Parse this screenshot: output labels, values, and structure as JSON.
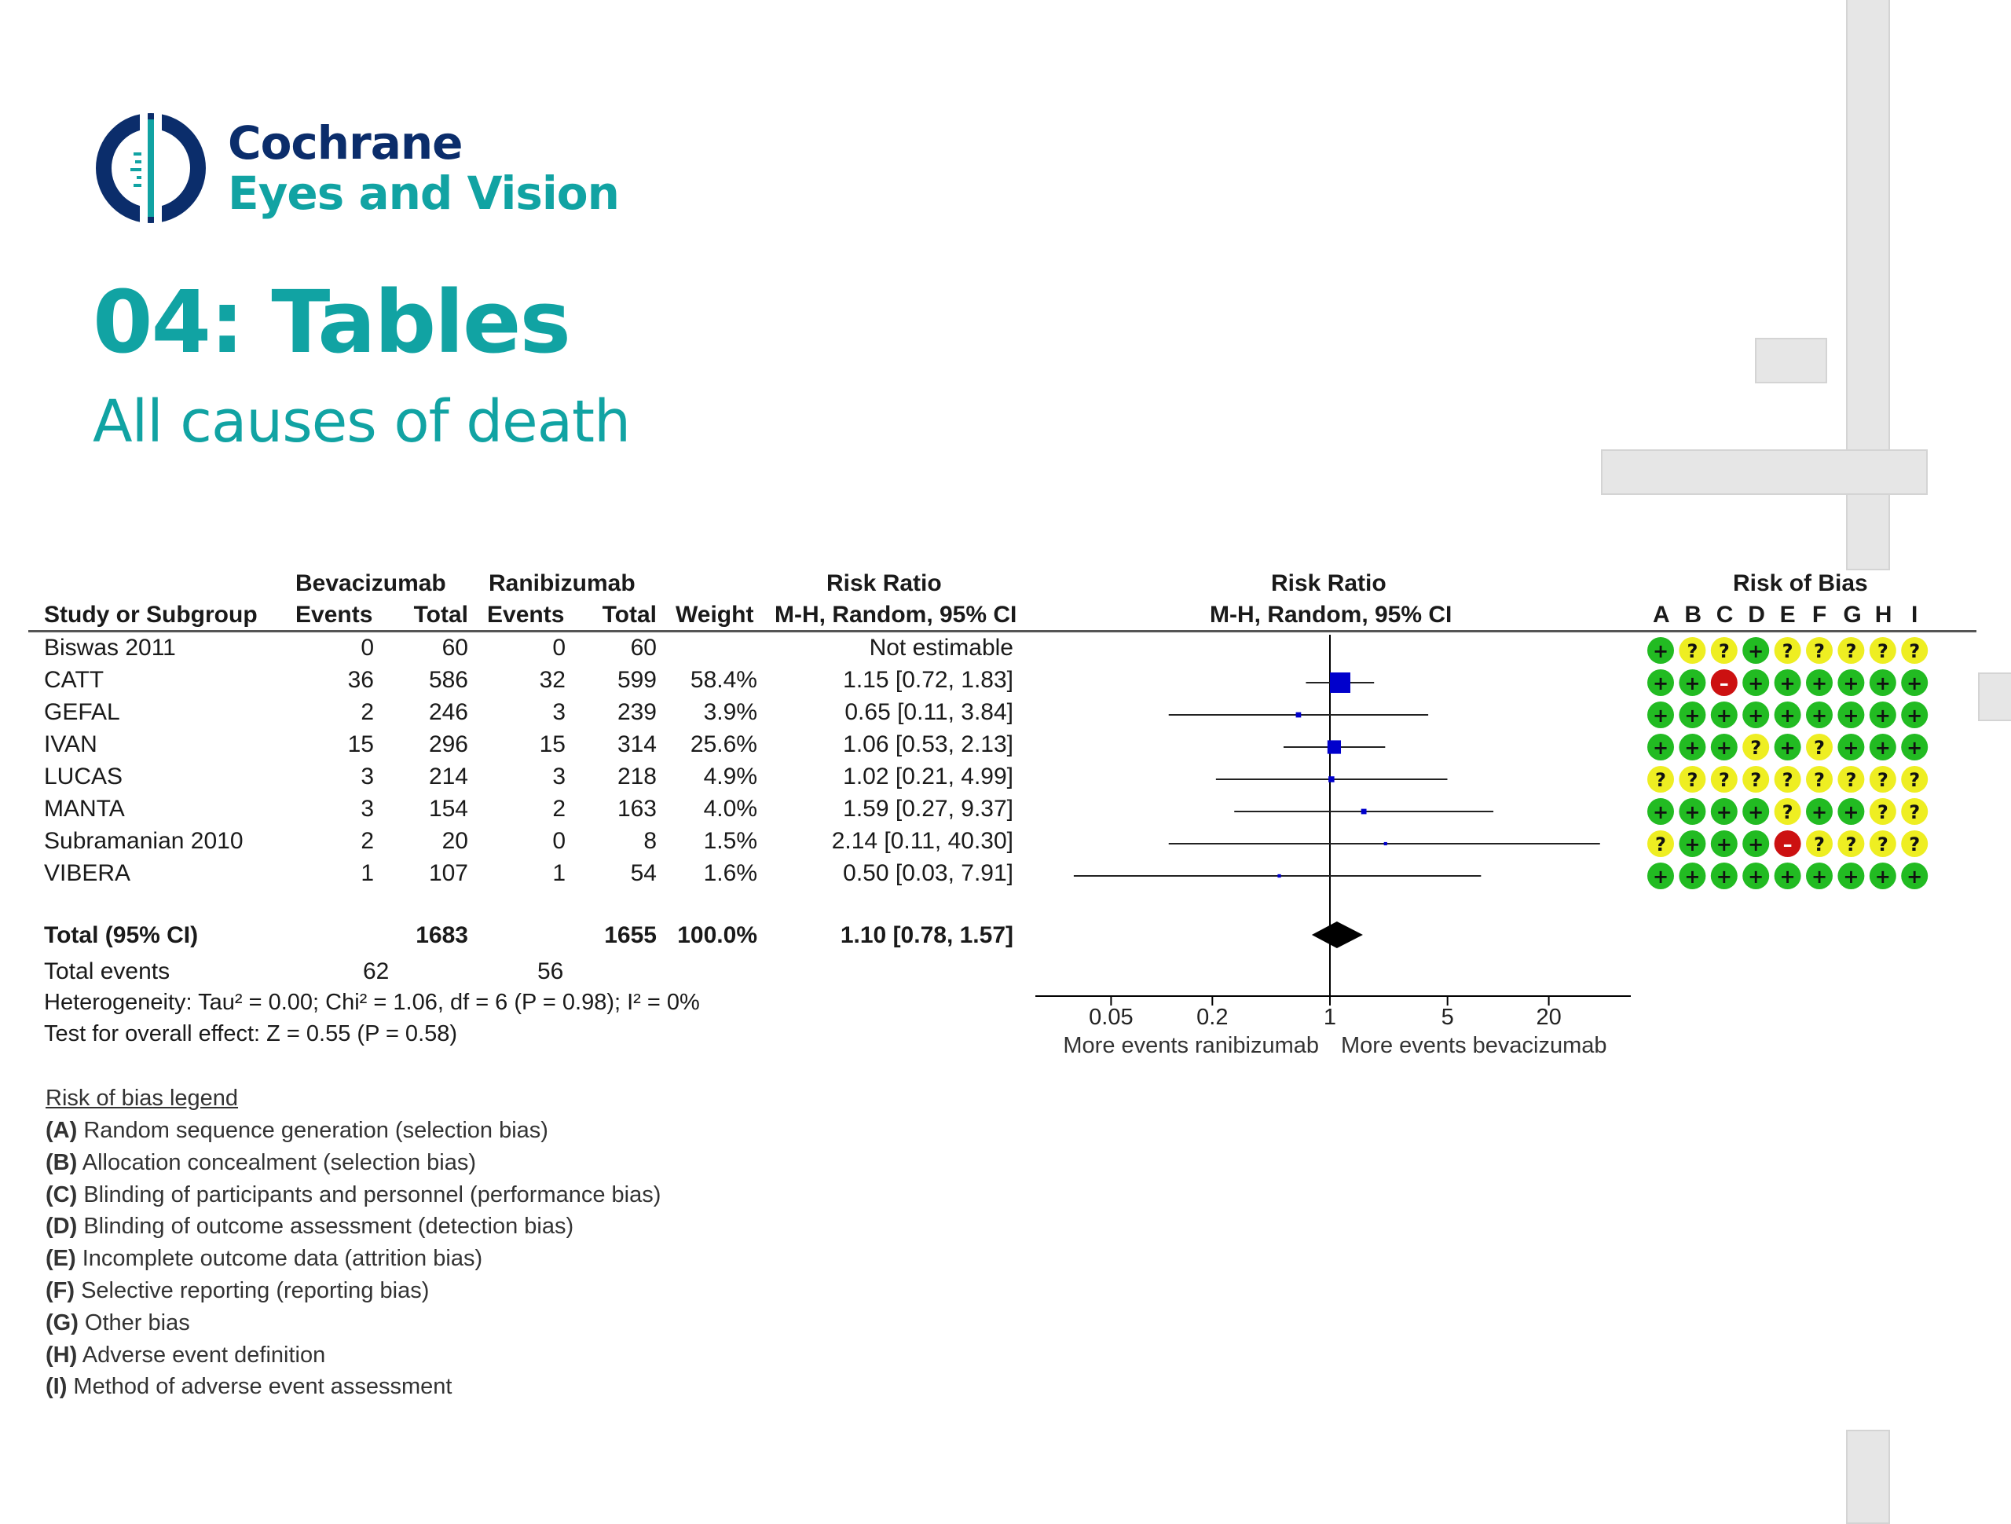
{
  "brand": {
    "line1": "Cochrane",
    "line2": "Eyes and Vision"
  },
  "slide": {
    "title": "04: Tables",
    "subtitle": "All causes of death"
  },
  "table": {
    "group1_header": "Bevacizumab",
    "group2_header": "Ranibizumab",
    "rr_header": "Risk Ratio",
    "rr_subheader": "M-H, Random, 95% CI",
    "plot_header": "Risk Ratio",
    "plot_subheader": "M-H, Random, 95% CI",
    "rob_header": "Risk of Bias",
    "col_study": "Study or Subgroup",
    "col_events1": "Events",
    "col_total1": "Total",
    "col_events2": "Events",
    "col_total2": "Total",
    "col_weight": "Weight",
    "rob_columns": [
      "A",
      "B",
      "C",
      "D",
      "E",
      "F",
      "G",
      "H",
      "I"
    ],
    "total_row": {
      "label": "Total (95% CI)",
      "total1": "1683",
      "total2": "1655",
      "weight": "100.0%",
      "ci": "1.10 [0.78, 1.57]"
    },
    "total_events": {
      "label": "Total events",
      "events1": "62",
      "events2": "56"
    },
    "heterogeneity": "Heterogeneity: Tau² = 0.00; Chi² = 1.06, df = 6 (P = 0.98); I² = 0%",
    "overall_effect": "Test for overall effect: Z = 0.55 (P = 0.58)"
  },
  "legend": {
    "title": "Risk of bias legend",
    "items": [
      {
        "key": "(A)",
        "text": " Random sequence generation (selection bias)"
      },
      {
        "key": "(B)",
        "text": " Allocation concealment (selection bias)"
      },
      {
        "key": "(C)",
        "text": " Blinding of participants and personnel (performance bias)"
      },
      {
        "key": "(D)",
        "text": " Blinding of outcome assessment (detection bias)"
      },
      {
        "key": "(E)",
        "text": " Incomplete outcome data (attrition bias)"
      },
      {
        "key": "(F)",
        "text": " Selective reporting (reporting bias)"
      },
      {
        "key": "(G)",
        "text": " Other bias"
      },
      {
        "key": "(H)",
        "text": " Adverse event definition"
      },
      {
        "key": "(I)",
        "text": " Method of adverse event assessment"
      }
    ]
  },
  "colors": {
    "teal": "#11a3a3",
    "navy": "#0b2d6b",
    "square": "#0000cc",
    "low_risk": "#22bb22",
    "unclear_risk": "#eeee22",
    "high_risk": "#cc1111"
  },
  "chart_data": {
    "type": "forest",
    "x_scale": "log",
    "x_ticks": [
      0.05,
      0.2,
      1,
      5,
      20
    ],
    "x_tick_labels": [
      "0.05",
      "0.2",
      "1",
      "5",
      "20"
    ],
    "xlabel_left": "More events ranibizumab",
    "xlabel_right": "More events bevacizumab",
    "studies": [
      {
        "name": "Biswas 2011",
        "events1": "0",
        "total1": "60",
        "events2": "0",
        "total2": "60",
        "weight": "",
        "ci": "Not estimable",
        "rr": null,
        "lo": null,
        "hi": null,
        "w": 0,
        "rob": [
          "+",
          "?",
          "?",
          "+",
          "?",
          "?",
          "?",
          "?",
          "?"
        ]
      },
      {
        "name": "CATT",
        "events1": "36",
        "total1": "586",
        "events2": "32",
        "total2": "599",
        "weight": "58.4%",
        "ci": "1.15 [0.72, 1.83]",
        "rr": 1.15,
        "lo": 0.72,
        "hi": 1.83,
        "w": 58.4,
        "rob": [
          "+",
          "+",
          "-",
          "+",
          "+",
          "+",
          "+",
          "+",
          "+"
        ]
      },
      {
        "name": "GEFAL",
        "events1": "2",
        "total1": "246",
        "events2": "3",
        "total2": "239",
        "weight": "3.9%",
        "ci": "0.65 [0.11, 3.84]",
        "rr": 0.65,
        "lo": 0.11,
        "hi": 3.84,
        "w": 3.9,
        "rob": [
          "+",
          "+",
          "+",
          "+",
          "+",
          "+",
          "+",
          "+",
          "+"
        ]
      },
      {
        "name": "IVAN",
        "events1": "15",
        "total1": "296",
        "events2": "15",
        "total2": "314",
        "weight": "25.6%",
        "ci": "1.06 [0.53, 2.13]",
        "rr": 1.06,
        "lo": 0.53,
        "hi": 2.13,
        "w": 25.6,
        "rob": [
          "+",
          "+",
          "+",
          "?",
          "+",
          "?",
          "+",
          "+",
          "+"
        ]
      },
      {
        "name": "LUCAS",
        "events1": "3",
        "total1": "214",
        "events2": "3",
        "total2": "218",
        "weight": "4.9%",
        "ci": "1.02 [0.21, 4.99]",
        "rr": 1.02,
        "lo": 0.21,
        "hi": 4.99,
        "w": 4.9,
        "rob": [
          "?",
          "?",
          "?",
          "?",
          "?",
          "?",
          "?",
          "?",
          "?"
        ]
      },
      {
        "name": "MANTA",
        "events1": "3",
        "total1": "154",
        "events2": "2",
        "total2": "163",
        "weight": "4.0%",
        "ci": "1.59 [0.27, 9.37]",
        "rr": 1.59,
        "lo": 0.27,
        "hi": 9.37,
        "w": 4.0,
        "rob": [
          "+",
          "+",
          "+",
          "+",
          "?",
          "+",
          "+",
          "?",
          "?"
        ]
      },
      {
        "name": "Subramanian 2010",
        "events1": "2",
        "total1": "20",
        "events2": "0",
        "total2": "8",
        "weight": "1.5%",
        "ci": "2.14 [0.11, 40.30]",
        "rr": 2.14,
        "lo": 0.11,
        "hi": 40.3,
        "w": 1.5,
        "rob": [
          "?",
          "+",
          "+",
          "+",
          "-",
          "?",
          "?",
          "?",
          "?"
        ]
      },
      {
        "name": "VIBERA",
        "events1": "1",
        "total1": "107",
        "events2": "1",
        "total2": "54",
        "weight": "1.6%",
        "ci": "0.50 [0.03, 7.91]",
        "rr": 0.5,
        "lo": 0.03,
        "hi": 7.91,
        "w": 1.6,
        "rob": [
          "+",
          "+",
          "+",
          "+",
          "+",
          "+",
          "+",
          "+",
          "+"
        ]
      }
    ],
    "pooled": {
      "rr": 1.1,
      "lo": 0.78,
      "hi": 1.57
    }
  }
}
